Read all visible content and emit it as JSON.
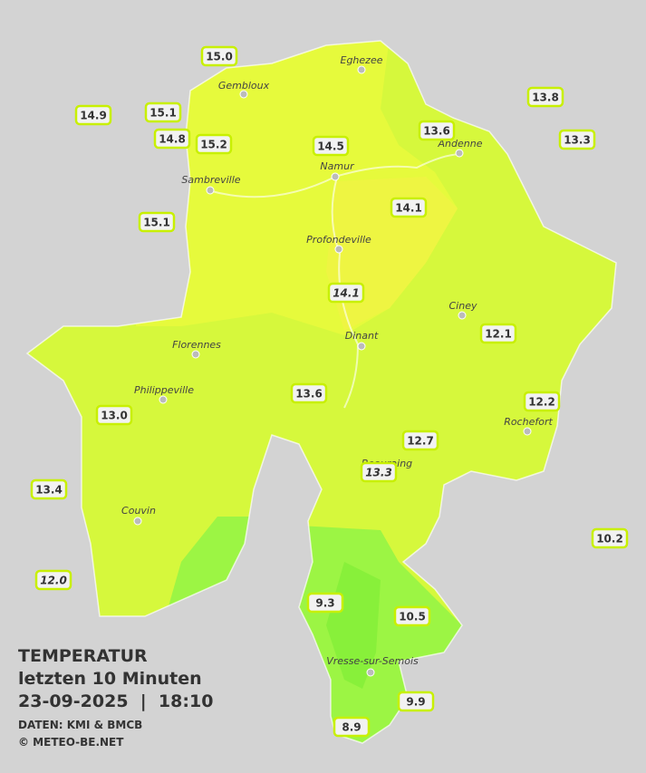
{
  "legend": {
    "title": "TEMPERATUR",
    "subtitle": "letzten 10 Minuten",
    "datetime": "23-09-2025  |  18:10",
    "source": "DATEN: KMI & BMCB",
    "copyright": "© METEO-BE.NET"
  },
  "cities": [
    "Eghezee",
    "Gembloux",
    "Andenne",
    "Namur",
    "Sambreville",
    "Profondeville",
    "Ciney",
    "Florennes",
    "Dinant",
    "Philippeville",
    "Rochefort",
    "Beauraing",
    "Couvin",
    "Vresse-sur-Semois"
  ],
  "stations": [
    "15.0",
    "15.1",
    "14.9",
    "14.8",
    "15.2",
    "14.5",
    "13.6",
    "13.8",
    "13.3",
    "14.1",
    "15.1",
    "14.1",
    "12.1",
    "13.6",
    "12.2",
    "13.0",
    "12.7",
    "13.3",
    "13.4",
    "10.2",
    "12.0",
    "9.3",
    "10.5",
    "9.9",
    "8.9"
  ]
}
